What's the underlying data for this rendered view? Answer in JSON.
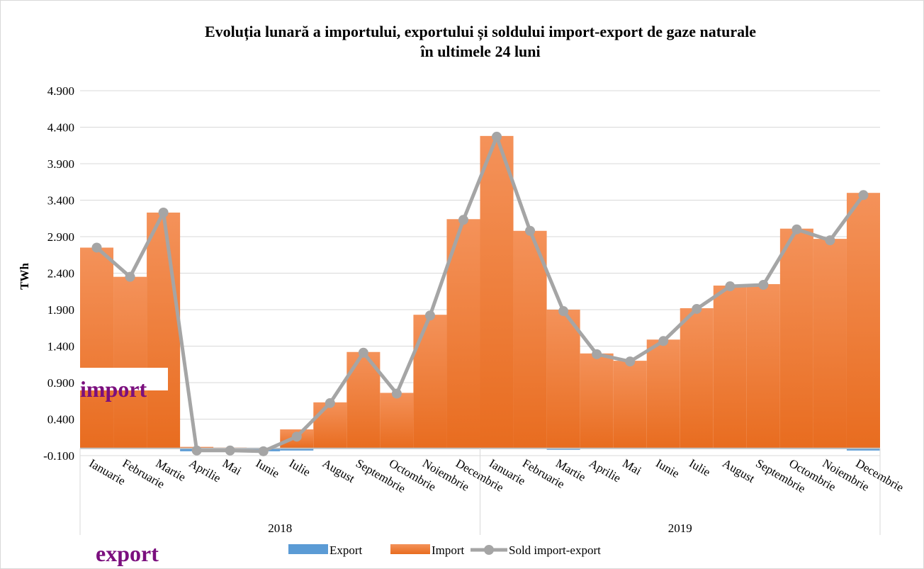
{
  "chart_data": {
    "type": "bar",
    "title": [
      "Evoluția lunară a importului, exportului și soldului import-export de gaze naturale",
      "în ultimele 24 luni"
    ],
    "y_label": "TWh",
    "categories": [
      "Ianuarie",
      "Februarie",
      "Martie",
      "Aprilie",
      "Mai",
      "Iunie",
      "Iulie",
      "August",
      "Septembrie",
      "Octombrie",
      "Noiembrie",
      "Decembrie",
      "Ianuarie",
      "Februarie",
      "Martie",
      "Aprilie",
      "Mai",
      "Iunie",
      "Iulie",
      "August",
      "Septembrie",
      "Octombrie",
      "Noiembrie",
      "Decembrie"
    ],
    "groups": [
      "2018",
      "2019"
    ],
    "series": [
      {
        "name": "Export",
        "type": "bar",
        "color": "#5b9bd5",
        "values": [
          0,
          0,
          0,
          -0.04,
          -0.03,
          -0.04,
          -0.03,
          0,
          0,
          0,
          0,
          0,
          0,
          0,
          -0.02,
          0,
          0,
          0,
          0,
          0,
          0,
          -0.01,
          -0.01,
          -0.03
        ]
      },
      {
        "name": "Import",
        "type": "bar",
        "color": "#ed7d31",
        "values": [
          2.75,
          2.35,
          3.23,
          0.02,
          0.01,
          0,
          0.26,
          0.63,
          1.32,
          0.76,
          1.83,
          3.14,
          4.28,
          2.98,
          1.9,
          1.3,
          1.2,
          1.49,
          1.92,
          2.23,
          2.25,
          3.01,
          2.87,
          3.5
        ]
      },
      {
        "name": "Sold import-export",
        "type": "line",
        "color": "#a5a5a5",
        "values": [
          2.75,
          2.35,
          3.23,
          -0.03,
          -0.03,
          -0.04,
          0.16,
          0.62,
          1.31,
          0.75,
          1.82,
          3.13,
          4.27,
          2.98,
          1.88,
          1.29,
          1.19,
          1.47,
          1.91,
          2.22,
          2.24,
          3.0,
          2.85,
          3.47
        ]
      }
    ],
    "ylim": [
      -0.1,
      4.9
    ],
    "yticks": [
      {
        "value": -0.1,
        "label": "-0.100"
      },
      {
        "value": 0.4,
        "label": "0.400"
      },
      {
        "value": 0.9,
        "label": "0.900"
      },
      {
        "value": 1.4,
        "label": "1.400"
      },
      {
        "value": 1.9,
        "label": "1.900"
      },
      {
        "value": 2.4,
        "label": "2.400"
      },
      {
        "value": 2.9,
        "label": "2.900"
      },
      {
        "value": 3.4,
        "label": "3.400"
      },
      {
        "value": 3.9,
        "label": "3.900"
      },
      {
        "value": 4.4,
        "label": "4.400"
      },
      {
        "value": 4.9,
        "label": "4.900"
      }
    ],
    "grid": true,
    "legend": "bottom",
    "annotations": [
      "import",
      "export"
    ]
  }
}
